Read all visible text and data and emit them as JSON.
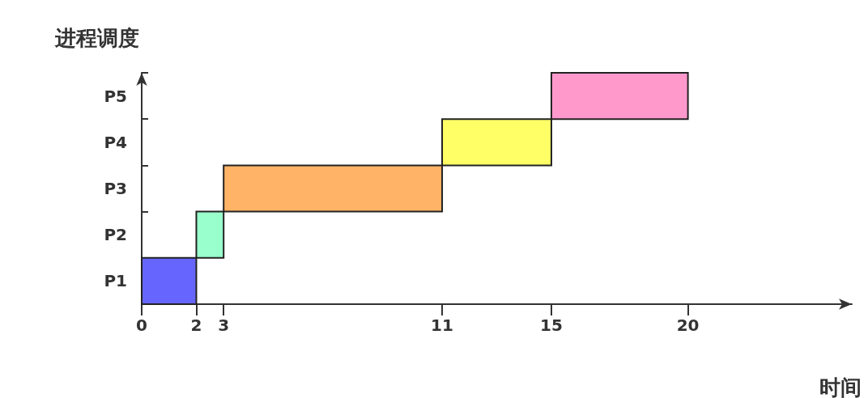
{
  "chart_data": {
    "type": "bar",
    "orientation": "horizontal",
    "xlabel": "时间",
    "ylabel": "进程调度",
    "categories": [
      "P5",
      "P4",
      "P3",
      "P2",
      "P1"
    ],
    "base": [
      15,
      11,
      3,
      2,
      0
    ],
    "values": [
      5,
      4,
      8,
      1,
      2
    ],
    "colors": [
      "#ff99cc",
      "#ffff66",
      "#ffb366",
      "#99ffcc",
      "#6666ff"
    ],
    "xlim": [
      0,
      26
    ],
    "xticks": [
      0,
      2,
      3,
      11,
      15,
      20
    ],
    "grid": false
  }
}
